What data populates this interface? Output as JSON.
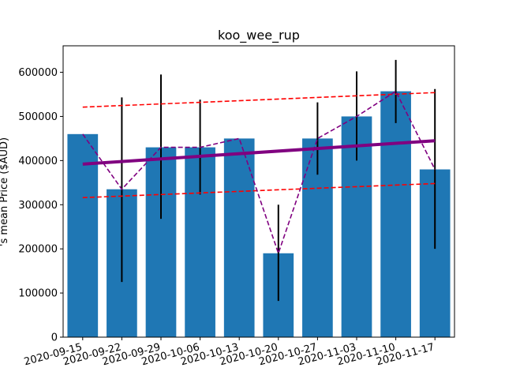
{
  "chart_data": {
    "type": "bar",
    "title": "koo_wee_rup",
    "ylabel": "'s mean Price ($AUD)",
    "xlabel": "",
    "categories": [
      "2020-09-15",
      "2020-09-22",
      "2020-09-29",
      "2020-10-06",
      "2020-10-13",
      "2020-10-20",
      "2020-10-27",
      "2020-11-03",
      "2020-11-10",
      "2020-11-17"
    ],
    "values": [
      460000,
      335000,
      430000,
      430000,
      450000,
      190000,
      450000,
      500000,
      557000,
      380000
    ],
    "error_low": [
      460000,
      125000,
      268000,
      323000,
      450000,
      82000,
      368000,
      400000,
      485000,
      200000
    ],
    "error_high": [
      460000,
      543000,
      595000,
      538000,
      450000,
      300000,
      532000,
      602000,
      628000,
      562000
    ],
    "trend": {
      "start": 392000,
      "end": 445000
    },
    "upper_band": {
      "start": 521000,
      "end": 554000
    },
    "lower_band": {
      "start": 316000,
      "end": 348000
    },
    "ylim": [
      0,
      660000
    ],
    "yticks": [
      0,
      100000,
      200000,
      300000,
      400000,
      500000,
      600000
    ],
    "colors": {
      "bar": "#1f77b4",
      "trend": "#800080",
      "band": "#ff0000",
      "line": "#800080",
      "error": "#000000"
    },
    "grid": false,
    "legend": "none"
  }
}
